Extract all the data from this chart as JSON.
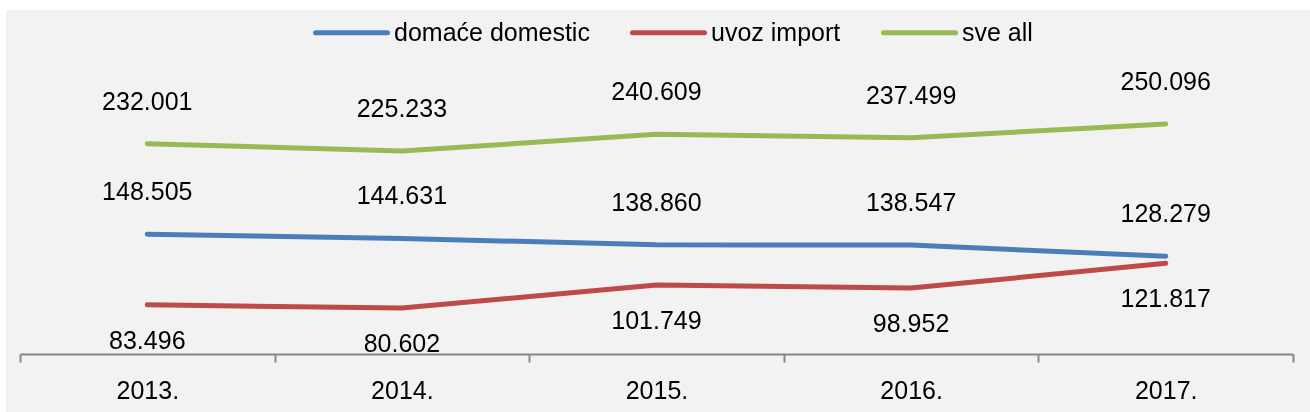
{
  "chart_data": {
    "type": "line",
    "categories": [
      "2013.",
      "2014.",
      "2015.",
      "2016.",
      "2017."
    ],
    "series": [
      {
        "name": "domaće domestic",
        "color": "#4a7ebb",
        "values": [
          148505,
          144631,
          138860,
          138547,
          128279
        ],
        "value_labels": [
          "148.505",
          "144.631",
          "138.860",
          "138.547",
          "128.279"
        ]
      },
      {
        "name": "uvoz import",
        "color": "#be4b48",
        "values": [
          83496,
          80602,
          101749,
          98952,
          121817
        ],
        "value_labels": [
          "83.496",
          "80.602",
          "101.749",
          "98.952",
          "121.817"
        ]
      },
      {
        "name": "sve all",
        "color": "#98b954",
        "values": [
          232001,
          225233,
          240609,
          237499,
          250096
        ],
        "value_labels": [
          "232.001",
          "225.233",
          "240.609",
          "237.499",
          "250.096"
        ]
      }
    ],
    "tick_labels": "x",
    "legend": "top"
  }
}
